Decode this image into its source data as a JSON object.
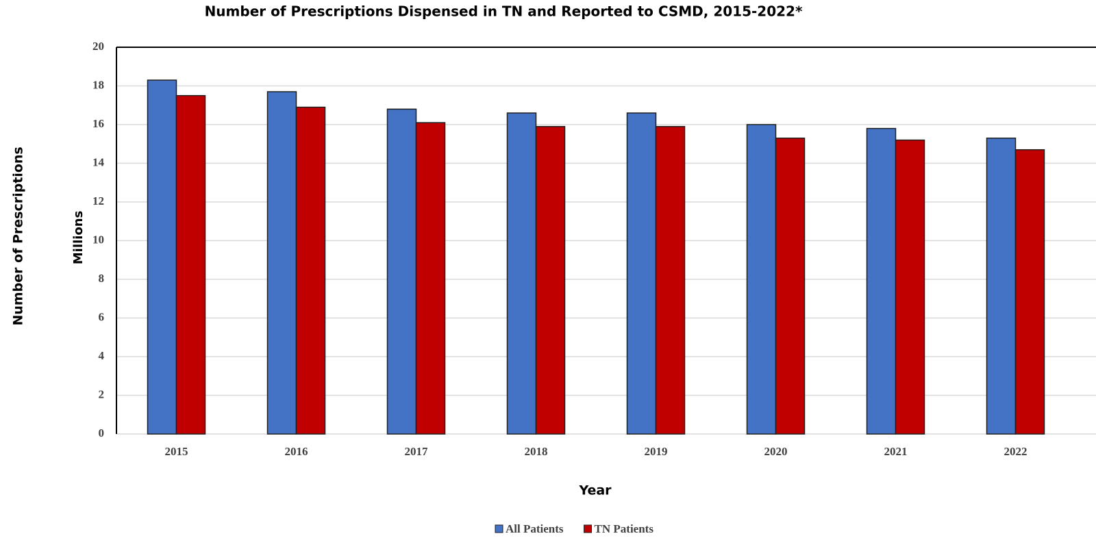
{
  "chart_data": {
    "type": "bar",
    "title": "Number of Prescriptions Dispensed in TN and Reported to CSMD, 2015-2022*",
    "y_label": "Number of Prescriptions",
    "y_unit_label": "Millions",
    "x_label": "Year",
    "categories": [
      "2015",
      "2016",
      "2017",
      "2018",
      "2019",
      "2020",
      "2021",
      "2022"
    ],
    "series": [
      {
        "name": "All Patients",
        "color": "#4472c4",
        "values": [
          18.3,
          17.7,
          16.8,
          16.6,
          16.6,
          16.0,
          15.8,
          15.3
        ]
      },
      {
        "name": "TN Patients",
        "color": "#c00000",
        "values": [
          17.5,
          16.9,
          16.1,
          15.9,
          15.9,
          15.3,
          15.2,
          14.7
        ]
      }
    ],
    "ylim": [
      0,
      20
    ],
    "yticks": [
      0,
      2,
      4,
      6,
      8,
      10,
      12,
      14,
      16,
      18,
      20
    ],
    "grid": true,
    "legend": "bottom"
  }
}
